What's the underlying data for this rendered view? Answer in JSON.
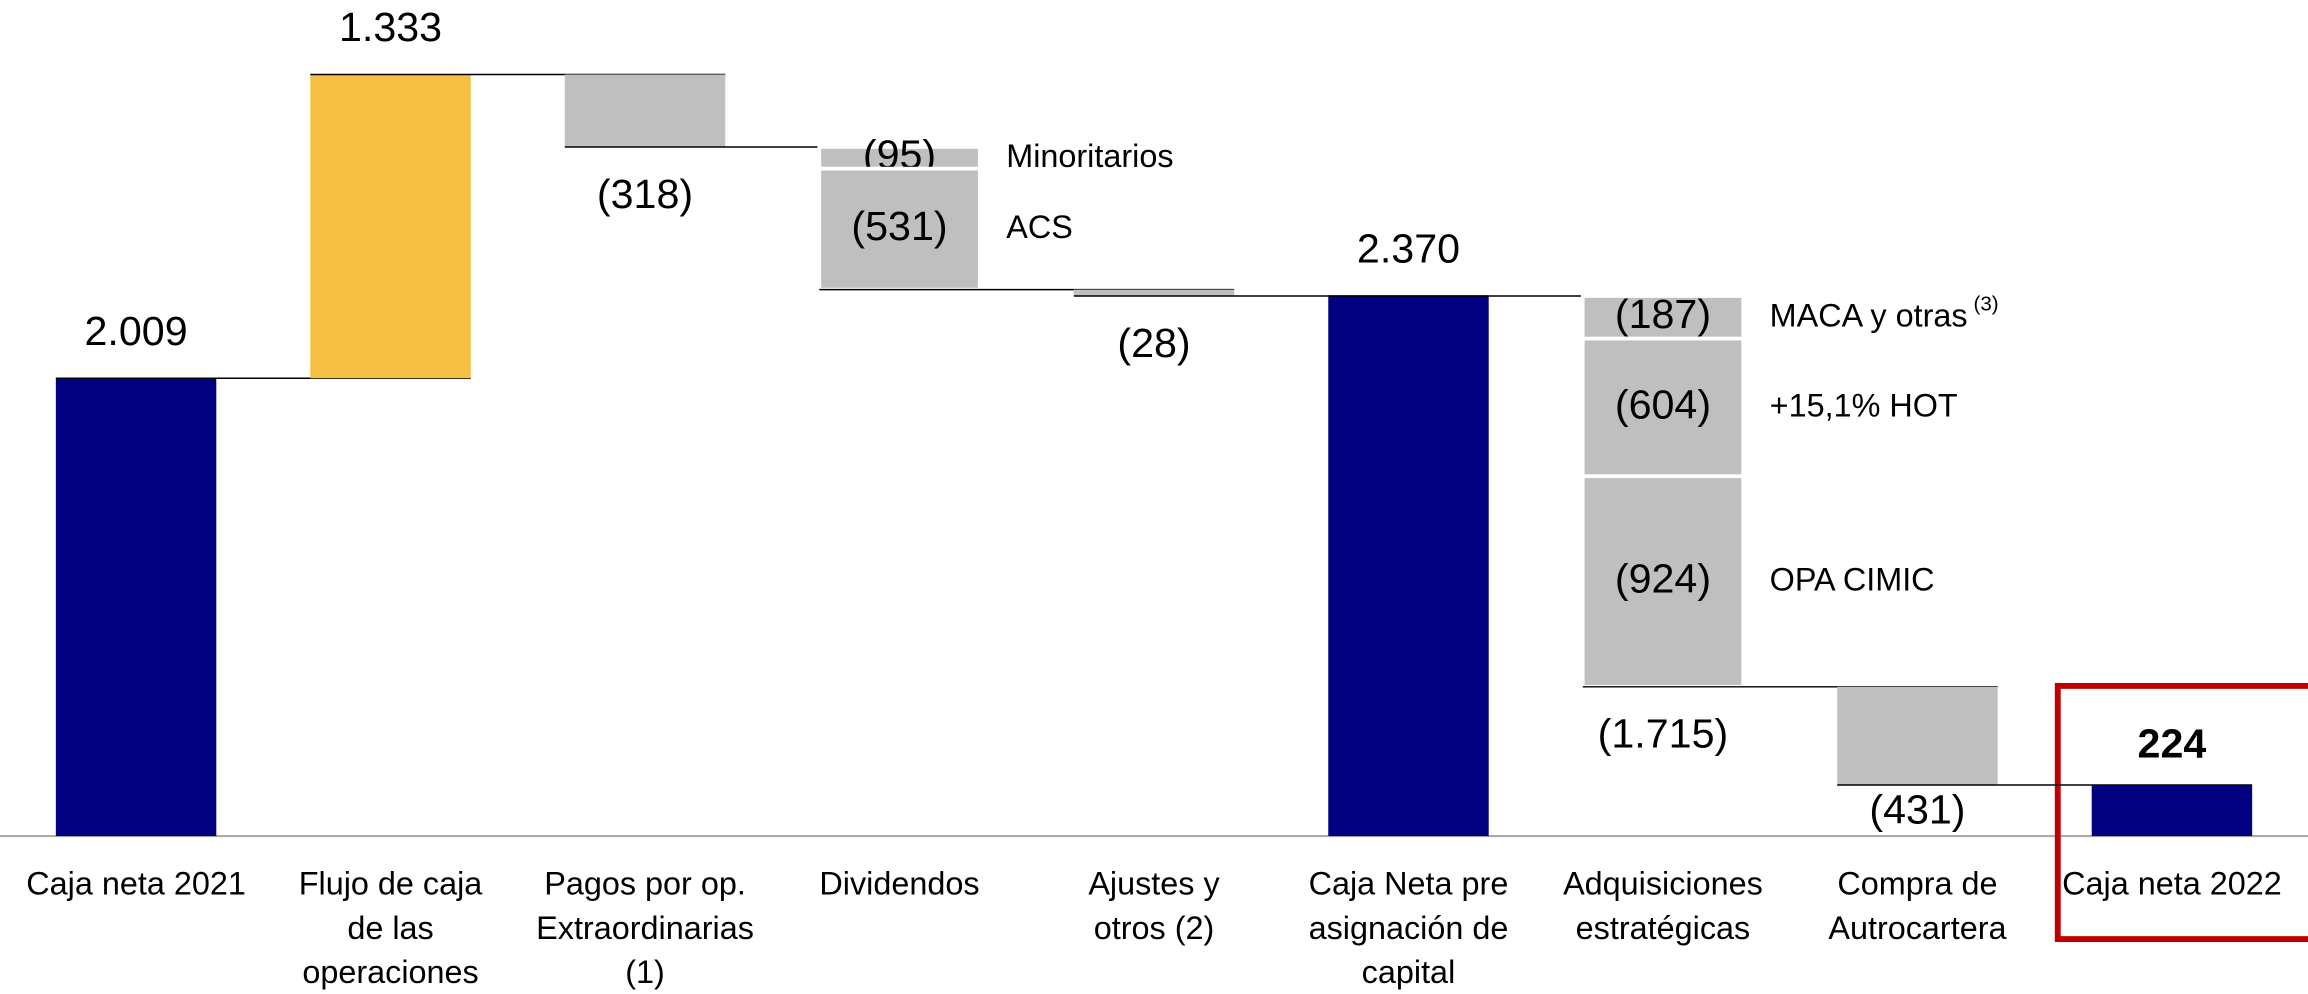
{
  "chart_data": {
    "type": "waterfall",
    "categories": [
      [
        "Caja neta 2021"
      ],
      [
        "Flujo de caja",
        "de las",
        "operaciones"
      ],
      [
        "Pagos por op.",
        "Extraordinarias",
        "(1)"
      ],
      [
        "Dividendos"
      ],
      [
        "Ajustes y",
        "otros (2)"
      ],
      [
        "Caja Neta pre",
        "asignación de",
        "capital"
      ],
      [
        "Adquisiciones",
        "estratégicas"
      ],
      [
        "Compra de",
        "Autrocartera"
      ],
      [
        "Caja neta 2022"
      ]
    ],
    "values": [
      2009,
      1333,
      -318,
      null,
      -28,
      2370,
      -1715,
      -431,
      224
    ],
    "value_labels": [
      "2.009",
      "1.333",
      "(318)",
      null,
      "(28)",
      "2.370",
      "(1.715)",
      "(431)",
      "224"
    ],
    "bar_types": [
      "total",
      "increase",
      "decrease",
      "decrease",
      "decrease",
      "total",
      "decrease",
      "decrease",
      "total"
    ],
    "colors": {
      "total": "#000080",
      "increase": "#f4bf42",
      "decrease": "#bfbfbf"
    },
    "segments": [
      null,
      null,
      null,
      [
        {
          "value": -95,
          "label": "(95)",
          "name": "Minoritarios"
        },
        {
          "value": -531,
          "label": "(531)",
          "name": "ACS"
        }
      ],
      null,
      null,
      [
        {
          "value": -187,
          "label": "(187)",
          "name": "MACA y otras",
          "note": "(3)"
        },
        {
          "value": -604,
          "label": "(604)",
          "name": "+15,1% HOT"
        },
        {
          "value": -924,
          "label": "(924)",
          "name": "OPA CIMIC"
        }
      ],
      null,
      null
    ],
    "ylim": [
      0,
      3669
    ]
  }
}
